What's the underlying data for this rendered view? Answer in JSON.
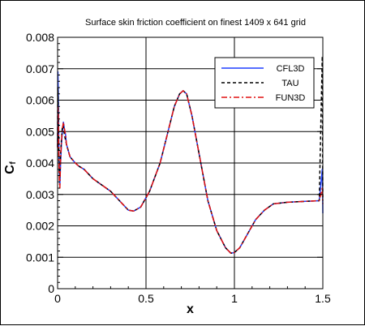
{
  "chart_data": {
    "type": "line",
    "title": "Surface skin friction coefficient on finest 1409 x 641 grid",
    "xlabel": "x",
    "ylabel_main": "C",
    "ylabel_sub": "f",
    "xlim": [
      0,
      1.5
    ],
    "ylim": [
      0,
      0.008
    ],
    "xticks": [
      0,
      0.5,
      1,
      1.5
    ],
    "xtick_labels": [
      "0",
      "0.5",
      "1",
      "1.5"
    ],
    "yticks": [
      0,
      0.001,
      0.002,
      0.003,
      0.004,
      0.005,
      0.006,
      0.007,
      0.008
    ],
    "ytick_labels": [
      "0",
      "0.001",
      "0.002",
      "0.003",
      "0.004",
      "0.005",
      "0.006",
      "0.007",
      "0.008"
    ],
    "grid": true,
    "legend_position": "top-right",
    "series": [
      {
        "name": "CFL3D",
        "color": "#1f3fff",
        "style": "solid",
        "x": [
          0,
          0.002,
          0.004,
          0.006,
          0.008,
          0.01,
          0.013,
          0.017,
          0.022,
          0.027,
          0.033,
          0.038,
          0.045,
          0.05,
          0.06,
          0.07,
          0.085,
          0.1,
          0.12,
          0.15,
          0.2,
          0.25,
          0.3,
          0.35,
          0.4,
          0.43,
          0.47,
          0.52,
          0.58,
          0.62,
          0.66,
          0.69,
          0.71,
          0.73,
          0.76,
          0.8,
          0.85,
          0.9,
          0.95,
          0.98,
          1.0,
          1.03,
          1.07,
          1.12,
          1.17,
          1.22,
          1.3,
          1.4,
          1.48,
          1.497,
          1.499,
          1.5
        ],
        "values": [
          0.0045,
          0.0069,
          0.0062,
          0.0051,
          0.0043,
          0.0036,
          0.0033,
          0.004,
          0.0046,
          0.005,
          0.0053,
          0.0051,
          0.0049,
          0.0046,
          0.0044,
          0.0042,
          0.0041,
          0.004,
          0.0039,
          0.0038,
          0.0035,
          0.0033,
          0.0031,
          0.0028,
          0.0025,
          0.00247,
          0.0026,
          0.0031,
          0.004,
          0.0049,
          0.0058,
          0.0062,
          0.0063,
          0.0062,
          0.0055,
          0.0043,
          0.0028,
          0.00185,
          0.0013,
          0.00113,
          0.00115,
          0.0013,
          0.0017,
          0.0022,
          0.0025,
          0.0027,
          0.00275,
          0.00278,
          0.0028,
          0.0038,
          0.003,
          0.0024
        ]
      },
      {
        "name": "TAU",
        "color": "#000000",
        "style": "dashed",
        "x": [
          0,
          0.001,
          0.003,
          0.005,
          0.007,
          0.009,
          0.012,
          0.016,
          0.021,
          0.026,
          0.031,
          0.036,
          0.042,
          0.05,
          0.06,
          0.07,
          0.085,
          0.1,
          0.12,
          0.15,
          0.2,
          0.25,
          0.3,
          0.35,
          0.4,
          0.43,
          0.47,
          0.52,
          0.58,
          0.62,
          0.66,
          0.69,
          0.71,
          0.73,
          0.76,
          0.8,
          0.85,
          0.9,
          0.95,
          0.98,
          1.0,
          1.03,
          1.07,
          1.12,
          1.17,
          1.22,
          1.3,
          1.4,
          1.48,
          1.497,
          1.499,
          1.5
        ],
        "values": [
          0.0045,
          0.0064,
          0.006,
          0.005,
          0.0042,
          0.0037,
          0.0035,
          0.0042,
          0.0047,
          0.0051,
          0.0052,
          0.005,
          0.0048,
          0.0046,
          0.0044,
          0.0042,
          0.0041,
          0.004,
          0.0039,
          0.0038,
          0.0035,
          0.0033,
          0.0031,
          0.0028,
          0.0025,
          0.00247,
          0.0026,
          0.0031,
          0.004,
          0.0049,
          0.0058,
          0.0062,
          0.0063,
          0.0062,
          0.0055,
          0.0043,
          0.0028,
          0.00185,
          0.0013,
          0.00113,
          0.00115,
          0.0013,
          0.0017,
          0.0022,
          0.0025,
          0.0027,
          0.00275,
          0.00278,
          0.0028,
          0.0074,
          0.004,
          0.0028
        ]
      },
      {
        "name": "FUN3D",
        "color": "#e01010",
        "style": "dashdot",
        "x": [
          0,
          0.002,
          0.004,
          0.006,
          0.008,
          0.01,
          0.013,
          0.017,
          0.022,
          0.027,
          0.033,
          0.038,
          0.045,
          0.05,
          0.06,
          0.07,
          0.085,
          0.1,
          0.12,
          0.15,
          0.2,
          0.25,
          0.3,
          0.35,
          0.4,
          0.43,
          0.47,
          0.52,
          0.58,
          0.62,
          0.66,
          0.69,
          0.71,
          0.73,
          0.76,
          0.8,
          0.85,
          0.9,
          0.95,
          0.98,
          1.0,
          1.03,
          1.07,
          1.12,
          1.17,
          1.22,
          1.3,
          1.4,
          1.48,
          1.497,
          1.499,
          1.5
        ],
        "values": [
          0.0045,
          0.0058,
          0.0056,
          0.0048,
          0.0041,
          0.0034,
          0.0032,
          0.0041,
          0.0047,
          0.0051,
          0.0053,
          0.0051,
          0.0049,
          0.0046,
          0.0044,
          0.0042,
          0.0041,
          0.004,
          0.0039,
          0.0038,
          0.0035,
          0.0033,
          0.0031,
          0.0028,
          0.0025,
          0.00247,
          0.0026,
          0.0031,
          0.004,
          0.0049,
          0.0058,
          0.0062,
          0.0063,
          0.0062,
          0.0055,
          0.0043,
          0.0028,
          0.00185,
          0.0013,
          0.00113,
          0.00115,
          0.0013,
          0.0017,
          0.0022,
          0.0025,
          0.0027,
          0.00275,
          0.00278,
          0.0028,
          0.0032,
          0.0028,
          0.0027
        ]
      }
    ]
  }
}
